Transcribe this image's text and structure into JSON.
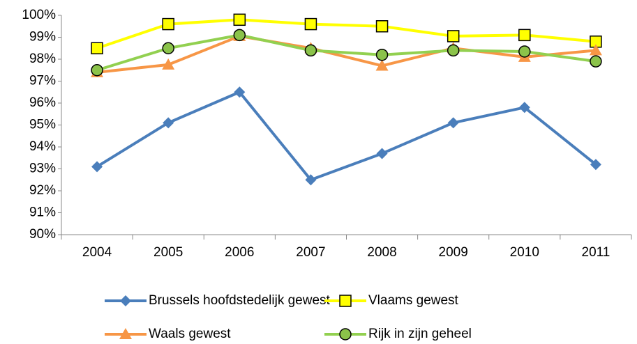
{
  "chart_data": {
    "type": "line",
    "categories": [
      "2004",
      "2005",
      "2006",
      "2007",
      "2008",
      "2009",
      "2010",
      "2011"
    ],
    "series": [
      {
        "name": "Brussels hoofdstedelijk  gewest",
        "color": "#4a7ebb",
        "marker": "diamond",
        "marker_fill": "#4a7ebb",
        "values": [
          93.1,
          95.1,
          96.5,
          92.5,
          93.7,
          95.1,
          95.8,
          93.2
        ]
      },
      {
        "name": "Vlaams gewest",
        "color": "#ffff00",
        "marker": "square",
        "marker_fill": "#ffff00",
        "values": [
          98.5,
          99.6,
          99.8,
          99.6,
          99.5,
          99.05,
          99.1,
          98.8
        ]
      },
      {
        "name": "Waals gewest",
        "color": "#f79646",
        "marker": "triangle",
        "marker_fill": "#f79646",
        "values": [
          97.4,
          97.75,
          99.05,
          98.5,
          97.7,
          98.5,
          98.1,
          98.4
        ]
      },
      {
        "name": "Rijk in zijn geheel",
        "color": "#92d050",
        "marker": "circle",
        "marker_fill": "#8bc34a",
        "values": [
          97.5,
          98.5,
          99.1,
          98.4,
          98.2,
          98.4,
          98.35,
          97.9
        ]
      }
    ],
    "ylim": [
      90,
      100
    ],
    "yticks": [
      {
        "value": 90,
        "label": "90%"
      },
      {
        "value": 91,
        "label": "91%"
      },
      {
        "value": 92,
        "label": "92%"
      },
      {
        "value": 93,
        "label": "93%"
      },
      {
        "value": 94,
        "label": "94%"
      },
      {
        "value": 95,
        "label": "95%"
      },
      {
        "value": 96,
        "label": "96%"
      },
      {
        "value": 97,
        "label": "97%"
      },
      {
        "value": 98,
        "label": "98%"
      },
      {
        "value": 99,
        "label": "99%"
      },
      {
        "value": 100,
        "label": "100%"
      }
    ],
    "grid": false,
    "legend": "bottom"
  }
}
